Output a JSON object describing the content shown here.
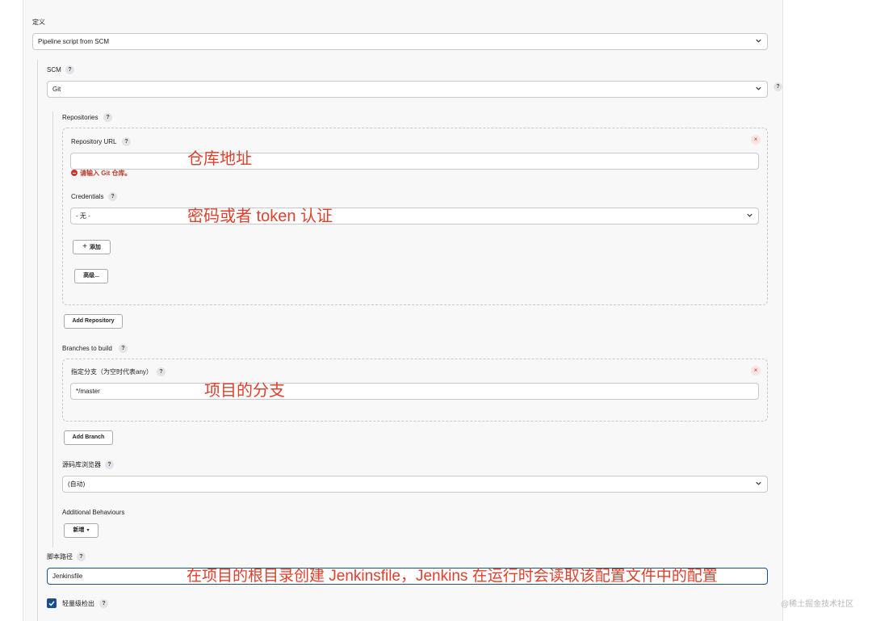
{
  "definition": {
    "label": "定义",
    "value": "Pipeline script from SCM"
  },
  "scm": {
    "label": "SCM",
    "value": "Git"
  },
  "repositories": {
    "label": "Repositories",
    "repo_url_label": "Repository URL",
    "repo_url_value": "",
    "repo_url_error": "请输入 Git 仓库。",
    "credentials_label": "Credentials",
    "credentials_value": "- 无 -",
    "add_button": "添加",
    "advanced_button": "高级...",
    "add_repository_button": "Add Repository"
  },
  "branches": {
    "label": "Branches to build",
    "branch_label": "指定分支（为空时代表any）",
    "branch_value": "*/master",
    "add_branch_button": "Add Branch"
  },
  "repo_browser": {
    "label": "源码库浏览器",
    "value": "(自动)"
  },
  "additional": {
    "label": "Additional Behaviours",
    "add_button": "新增"
  },
  "script_path": {
    "label": "脚本路径",
    "value": "Jenkinsfile"
  },
  "lightweight": {
    "label": "轻量级检出",
    "checked": true
  },
  "help_glyph": "?",
  "close_glyph": "×",
  "annotations": {
    "repo_url": "仓库地址",
    "credentials": "密码或者 token 认证",
    "branch": "项目的分支",
    "script_path": "在项目的根目录创建 Jenkinsfile，Jenkins 在运行时会读取该配置文件中的配置"
  },
  "watermark": "@稀土掘金技术社区",
  "colors": {
    "annotation": "#e0402c",
    "error": "#c0392b",
    "checkbox": "#1b4f8c",
    "focus_border": "#1b4f8c"
  }
}
